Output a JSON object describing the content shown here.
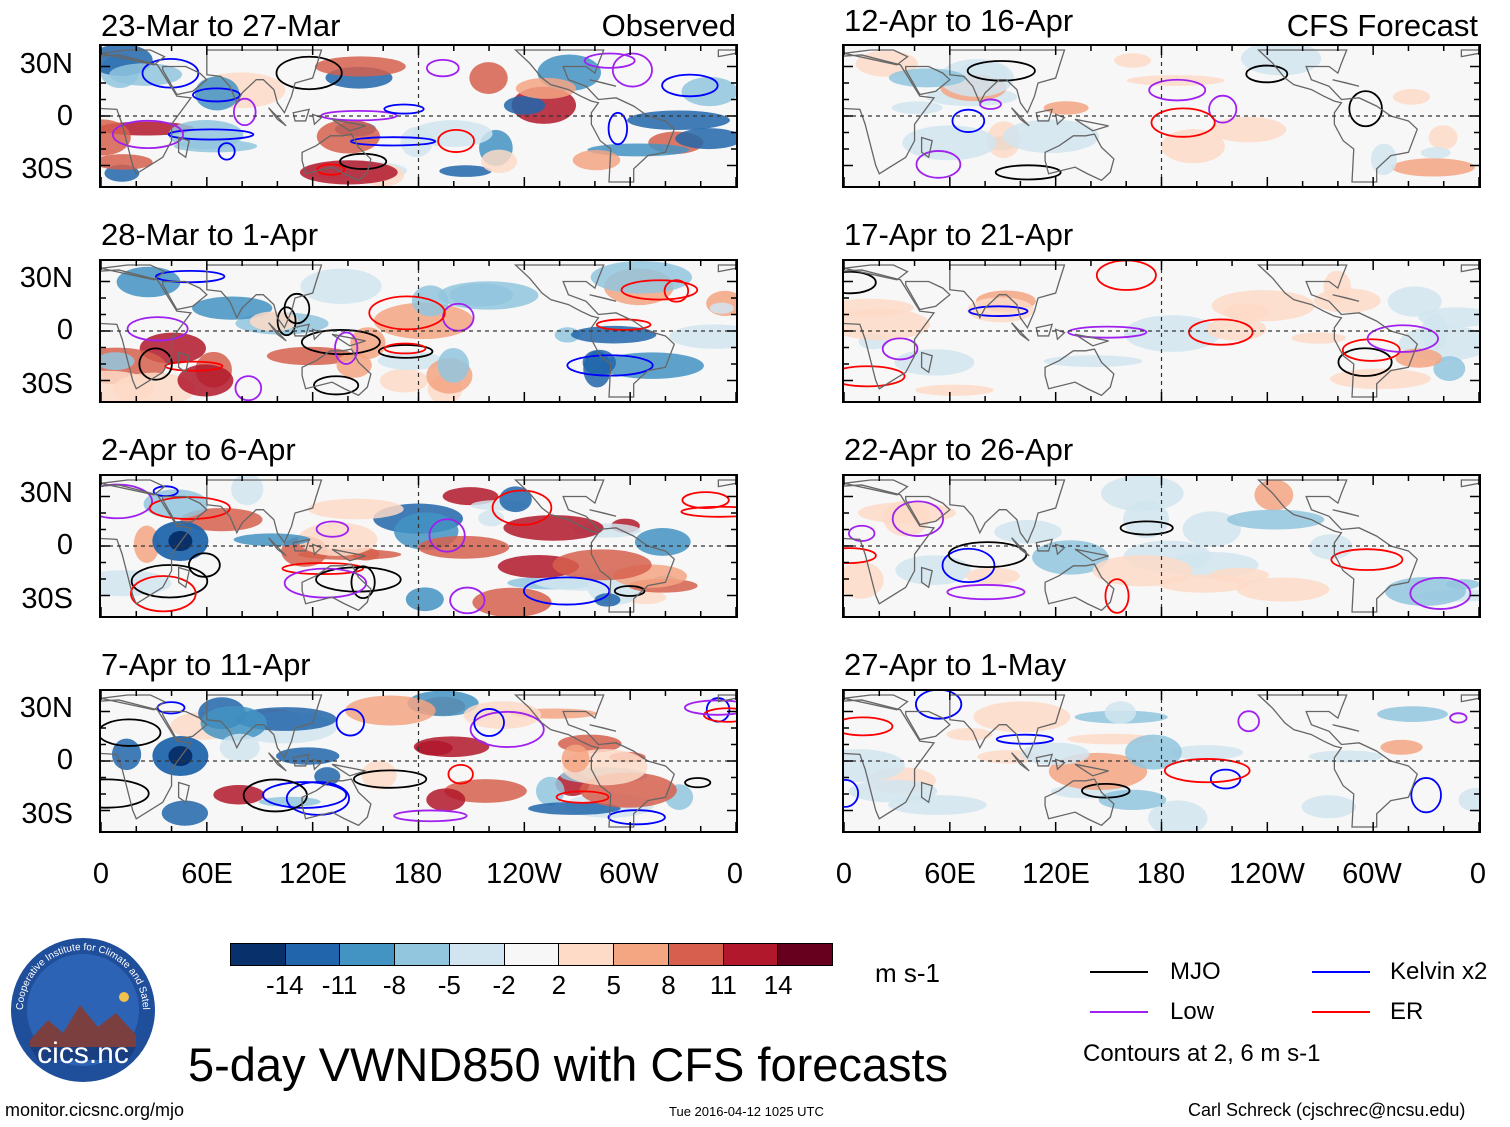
{
  "title": "5-day VWND850 with CFS forecasts",
  "panel_headers": {
    "observed": "Observed",
    "forecast": "CFS Forecast"
  },
  "panels_observed": [
    "23-Mar to 27-Mar",
    "28-Mar to 1-Apr",
    "2-Apr to 6-Apr",
    "7-Apr to 11-Apr"
  ],
  "panels_forecast": [
    "12-Apr to 16-Apr",
    "17-Apr to 21-Apr",
    "22-Apr to 26-Apr",
    "27-Apr to 1-May"
  ],
  "lat_labels": [
    "30N",
    "0",
    "30S"
  ],
  "lon_labels": [
    "0",
    "60E",
    "120E",
    "180",
    "120W",
    "60W",
    "0"
  ],
  "colorbar": {
    "units": "m s-1",
    "ticks": [
      "-14",
      "-11",
      "-8",
      "-5",
      "-2",
      "2",
      "5",
      "8",
      "11",
      "14"
    ],
    "colors": [
      "#08306b",
      "#2166ac",
      "#4393c3",
      "#92c5de",
      "#d1e5f0",
      "#f7f7f7",
      "#fddbc7",
      "#f4a582",
      "#d6604d",
      "#b2182b",
      "#67001f"
    ]
  },
  "legend": {
    "items": [
      {
        "label": "MJO",
        "color": "#000000"
      },
      {
        "label": "Kelvin x2",
        "color": "#0000ff"
      },
      {
        "label": "Low",
        "color": "#a020f0"
      },
      {
        "label": "ER",
        "color": "#ff0000"
      }
    ],
    "note": "Contours at 2, 6 m s-1"
  },
  "logo_text": "cics.nc",
  "logo_ring_text": "Cooperative Institute for Climate and Satellites",
  "footer": {
    "left": "monitor.cicsnc.org/mjo",
    "center": "Tue 2016-04-12 1025 UTC",
    "right": "Carl Schreck (cjschrec@ncsu.edu)"
  }
}
